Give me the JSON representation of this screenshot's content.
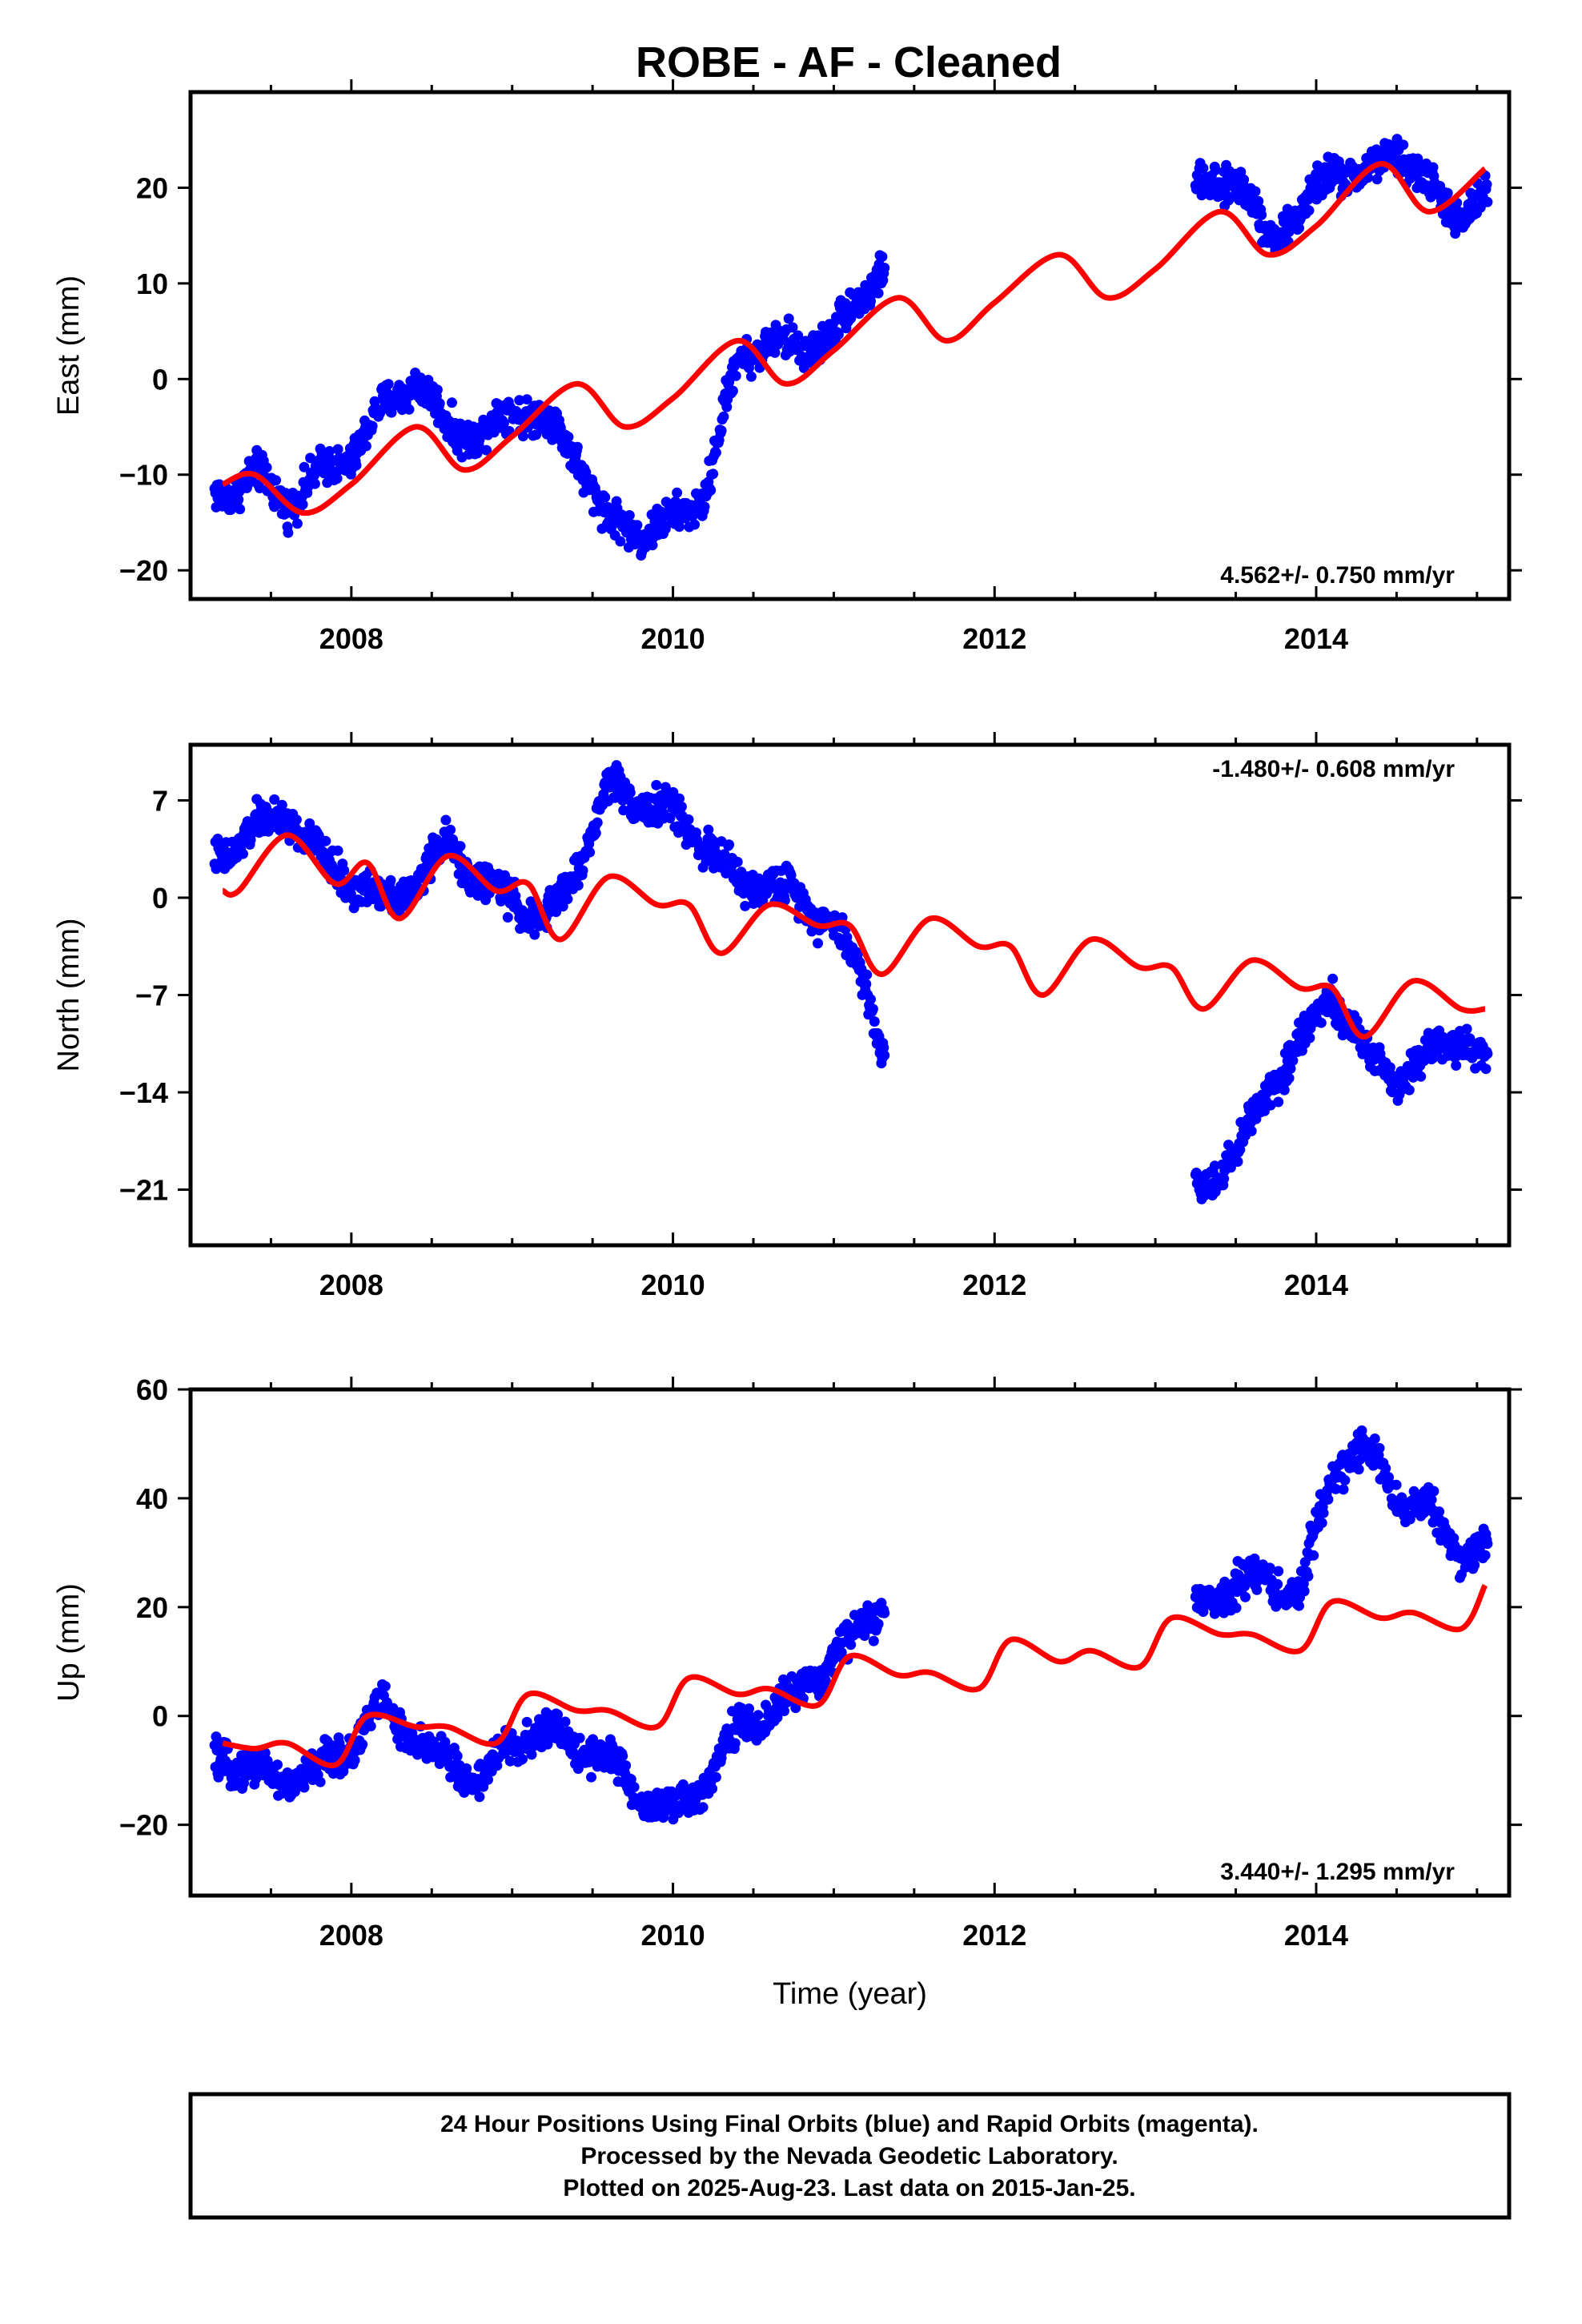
{
  "title": "ROBE  - AF - Cleaned",
  "colors": {
    "final_orbits": "#0000ff",
    "model_fit": "#ff0000",
    "frame": "#000000"
  },
  "chart_data": [
    {
      "type": "scatter",
      "component": "east",
      "ylabel": "East (mm)",
      "xlabel": "",
      "xlim": [
        2007.0,
        2015.2
      ],
      "ylim": [
        -23,
        30
      ],
      "xticks": [
        2008,
        2010,
        2012,
        2014
      ],
      "yticks": [
        -20,
        -10,
        0,
        10,
        20
      ],
      "rate_text": "4.562+/- 0.750 mm/yr",
      "rate_position": "bottom-right",
      "series": [
        {
          "kind": "points",
          "x": [
            2007.2,
            2007.4,
            2007.6,
            2007.8,
            2008.0,
            2008.2,
            2008.4,
            2008.6,
            2008.8,
            2009.0,
            2009.2,
            2009.4,
            2009.6,
            2009.8,
            2010.0,
            2010.2,
            2010.4,
            2010.6,
            2010.8,
            2011.0,
            2011.2,
            2011.3,
            2013.3,
            2013.5,
            2013.7,
            2013.9,
            2014.1,
            2014.3,
            2014.5,
            2014.7,
            2014.9,
            2015.05
          ],
          "y": [
            -12,
            -10,
            -13,
            -10,
            -8,
            -3,
            0,
            -5,
            -6,
            -3,
            -4,
            -8,
            -15,
            -16,
            -15,
            -12,
            2,
            4,
            3,
            5,
            9,
            12,
            20,
            21,
            15,
            17,
            22,
            21,
            24,
            20,
            17,
            19
          ]
        },
        {
          "kind": "fit",
          "x": [
            2007.2,
            2007.4,
            2007.7,
            2008.0,
            2008.4,
            2008.7,
            2009.0,
            2009.4,
            2009.7,
            2010.0,
            2010.4,
            2010.7,
            2011.0,
            2011.4,
            2011.7,
            2012.0,
            2012.4,
            2012.7,
            2013.0,
            2013.4,
            2013.7,
            2014.0,
            2014.4,
            2014.7,
            2015.05
          ],
          "y": [
            -11,
            -10,
            -14,
            -11,
            -5,
            -9.5,
            -6,
            -0.5,
            -5,
            -2,
            4,
            -0.5,
            3,
            8.5,
            4,
            8,
            13,
            8.5,
            11.5,
            17.5,
            13,
            16,
            22.5,
            17.5,
            22
          ]
        }
      ]
    },
    {
      "type": "scatter",
      "component": "north",
      "ylabel": "North (mm)",
      "xlabel": "",
      "xlim": [
        2007.0,
        2015.2
      ],
      "ylim": [
        -25,
        11
      ],
      "xticks": [
        2008,
        2010,
        2012,
        2014
      ],
      "yticks": [
        -21,
        -14,
        -7,
        0,
        7
      ],
      "rate_text": "-1.480+/- 0.608 mm/yr",
      "rate_position": "top-right",
      "series": [
        {
          "kind": "points",
          "x": [
            2007.2,
            2007.4,
            2007.6,
            2007.8,
            2008.0,
            2008.2,
            2008.4,
            2008.6,
            2008.8,
            2009.0,
            2009.2,
            2009.4,
            2009.6,
            2009.8,
            2010.0,
            2010.2,
            2010.4,
            2010.6,
            2010.8,
            2011.0,
            2011.2,
            2011.3,
            2013.3,
            2013.5,
            2013.7,
            2013.9,
            2014.1,
            2014.3,
            2014.5,
            2014.7,
            2014.9,
            2015.05
          ],
          "y": [
            3,
            5,
            6,
            3,
            1,
            0,
            1,
            4,
            1,
            0,
            -2,
            2,
            8,
            7,
            6,
            4,
            1,
            1,
            0,
            -2,
            -6,
            -11,
            -21,
            -18,
            -14,
            -10,
            -7,
            -11,
            -13,
            -11,
            -10,
            -12
          ]
        },
        {
          "kind": "fit",
          "x": [
            2007.2,
            2007.3,
            2007.6,
            2007.9,
            2008.1,
            2008.3,
            2008.6,
            2008.9,
            2009.1,
            2009.3,
            2009.6,
            2009.9,
            2010.1,
            2010.3,
            2010.6,
            2010.9,
            2011.1,
            2011.3,
            2011.6,
            2011.9,
            2012.1,
            2012.3,
            2012.6,
            2012.9,
            2013.1,
            2013.3,
            2013.6,
            2013.9,
            2014.1,
            2014.3,
            2014.6,
            2014.9,
            2015.05
          ],
          "y": [
            0.5,
            0.5,
            4.5,
            1,
            2.5,
            -1.5,
            3,
            0.5,
            1,
            -3,
            1.5,
            -0.5,
            -0.5,
            -4,
            -0.5,
            -2,
            -2,
            -5.5,
            -1.5,
            -3.5,
            -3.5,
            -7,
            -3,
            -5,
            -5,
            -8,
            -4.5,
            -6.5,
            -6.5,
            -10,
            -6,
            -8,
            -8
          ]
        }
      ]
    },
    {
      "type": "scatter",
      "component": "up",
      "ylabel": "Up (mm)",
      "xlabel": "Time (year)",
      "xlim": [
        2007.0,
        2015.2
      ],
      "ylim": [
        -33,
        60
      ],
      "xticks": [
        2008,
        2010,
        2012,
        2014
      ],
      "yticks": [
        -20,
        0,
        20,
        40,
        60
      ],
      "rate_text": "3.440+/- 1.295 mm/yr",
      "rate_position": "bottom-right",
      "series": [
        {
          "kind": "points",
          "x": [
            2007.2,
            2007.4,
            2007.6,
            2007.8,
            2008.0,
            2008.2,
            2008.4,
            2008.6,
            2008.8,
            2009.0,
            2009.2,
            2009.4,
            2009.6,
            2009.8,
            2010.0,
            2010.2,
            2010.4,
            2010.6,
            2010.8,
            2011.0,
            2011.2,
            2011.3,
            2013.3,
            2013.5,
            2013.7,
            2013.9,
            2014.1,
            2014.3,
            2014.5,
            2014.7,
            2014.9,
            2015.05
          ],
          "y": [
            -8,
            -10,
            -12,
            -10,
            -5,
            2,
            -5,
            -8,
            -12,
            -5,
            -3,
            -5,
            -8,
            -15,
            -18,
            -12,
            -2,
            0,
            5,
            10,
            18,
            20,
            20,
            25,
            25,
            22,
            45,
            50,
            40,
            38,
            30,
            30
          ]
        },
        {
          "kind": "fit",
          "x": [
            2007.2,
            2007.4,
            2007.6,
            2007.9,
            2008.1,
            2008.4,
            2008.6,
            2008.9,
            2009.1,
            2009.4,
            2009.6,
            2009.9,
            2010.1,
            2010.4,
            2010.6,
            2010.9,
            2011.1,
            2011.4,
            2011.6,
            2011.9,
            2012.1,
            2012.4,
            2012.6,
            2012.9,
            2013.1,
            2013.4,
            2013.6,
            2013.9,
            2014.1,
            2014.4,
            2014.6,
            2014.9,
            2015.05
          ],
          "y": [
            -5,
            -6,
            -5,
            -9,
            0,
            -2,
            -2,
            -5,
            4,
            1,
            1,
            -2,
            7,
            4,
            5,
            2,
            11,
            7.5,
            8,
            5,
            14,
            10,
            12,
            9,
            18,
            15,
            15,
            12,
            21,
            18,
            19,
            16,
            24
          ]
        }
      ]
    }
  ],
  "footer": {
    "lines": [
      "24 Hour Positions Using Final Orbits (blue) and Rapid Orbits (magenta).",
      "Processed by the Nevada Geodetic Laboratory.",
      "Plotted on 2025-Aug-23. Last data on 2015-Jan-25."
    ]
  }
}
